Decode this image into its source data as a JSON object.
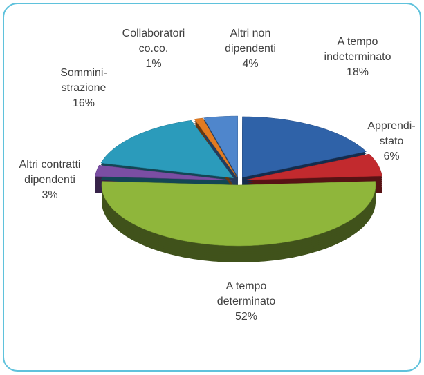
{
  "chart_data": {
    "type": "pie3d",
    "categories": [
      "A tempo\nindeterminato",
      "Apprendi-\nstato",
      "A tempo\ndeterminato",
      "Altri contratti\ndipendenti",
      "Sommini-\nstrazione",
      "Collaboratori\nco.co.",
      "Altri non\ndipendenti"
    ],
    "values": [
      18,
      6,
      52,
      3,
      16,
      1,
      4
    ],
    "value_labels": [
      "18%",
      "6%",
      "52%",
      "3%",
      "16%",
      "1%",
      "4%"
    ],
    "colors": [
      "#2f62a8",
      "#c22a2e",
      "#8fb63b",
      "#7a4ea3",
      "#2b9bbb",
      "#e27b22",
      "#4f86cc"
    ]
  }
}
